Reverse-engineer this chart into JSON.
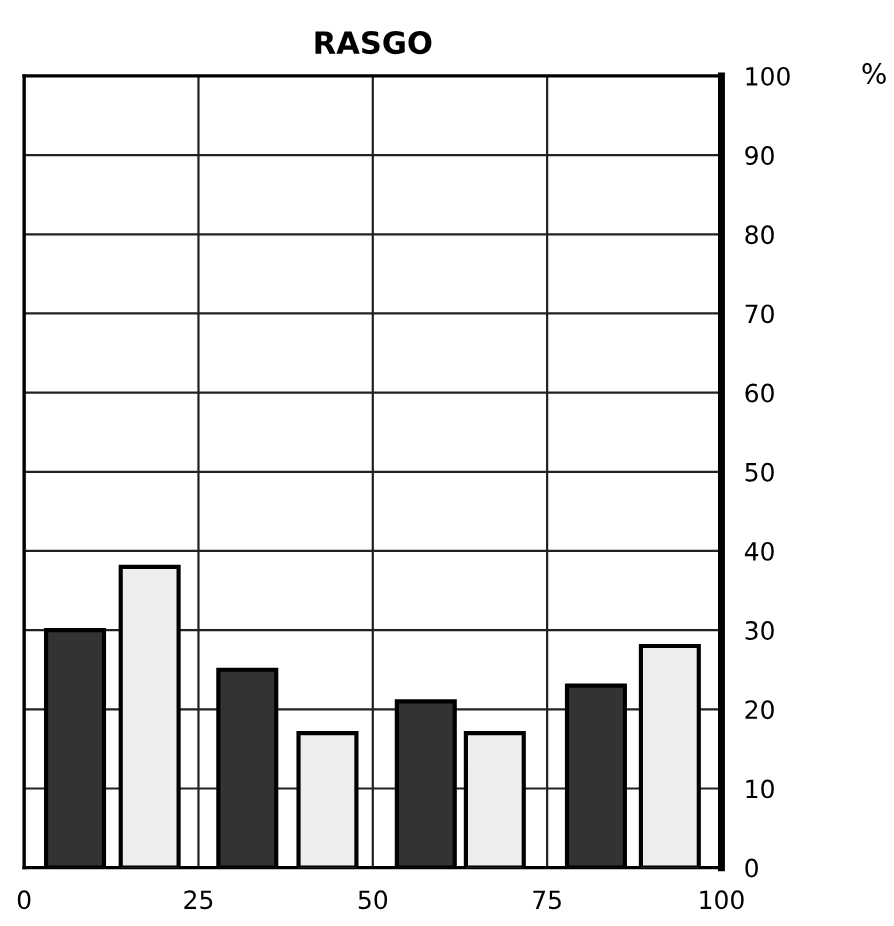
{
  "chart_data": {
    "type": "bar",
    "title": "RASGO",
    "ylabel": "%",
    "series": [
      {
        "color": "#333333",
        "x": [
          7.3,
          32,
          57.6,
          82
        ],
        "values": [
          30,
          25,
          21,
          23
        ]
      },
      {
        "color": "#eeeeee",
        "x": [
          18,
          43.5,
          67.5,
          92.6
        ],
        "values": [
          38,
          17,
          17,
          28
        ]
      }
    ],
    "xlim": [
      0,
      100
    ],
    "xticks": [
      0,
      25,
      50,
      75,
      100
    ],
    "ylim": [
      0,
      100
    ],
    "yticks": [
      0,
      10,
      20,
      30,
      40,
      50,
      60,
      70,
      80,
      90,
      100
    ],
    "grid": true,
    "legend": false
  }
}
